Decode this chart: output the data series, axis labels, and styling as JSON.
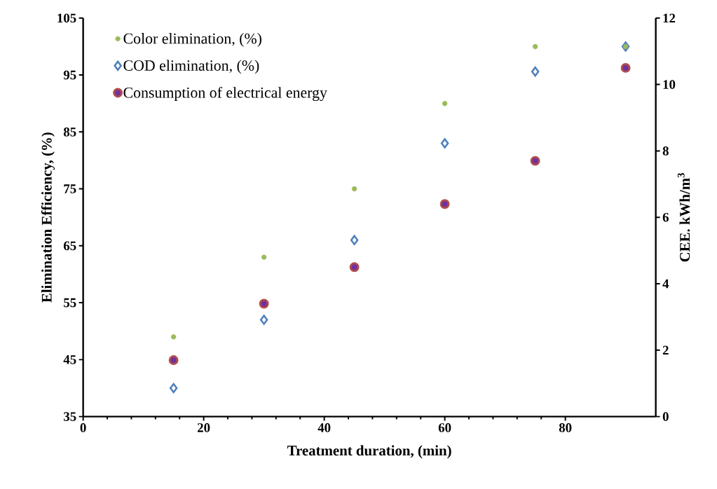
{
  "chart_data": {
    "type": "scatter",
    "xlabel": "Treatment duration, (min)",
    "ylabel": "Elimination Efficiency, (%)",
    "y2label": "CEE. kWh/m$^{3}$",
    "x": [
      15,
      30,
      45,
      60,
      75,
      90
    ],
    "xlim": [
      0,
      95
    ],
    "xticks": [
      0,
      20,
      40,
      60,
      80
    ],
    "ylim": [
      35,
      105
    ],
    "yticks": [
      35,
      45,
      55,
      65,
      75,
      85,
      95,
      105
    ],
    "y2lim": [
      0,
      12
    ],
    "y2ticks": [
      0,
      2,
      4,
      6,
      8,
      10,
      12
    ],
    "grid": false,
    "legend": "top left",
    "series": [
      {
        "name": "Color elimination, (%)",
        "color": "#9bbb59",
        "marker": "circle",
        "values": [
          49,
          63,
          75,
          90,
          100,
          100
        ]
      },
      {
        "name": "COD elimination, (%)",
        "color": "#4f81bd",
        "marker": "diamond",
        "values": [
          40,
          52,
          66,
          83,
          95.6,
          100
        ]
      },
      {
        "name": "Consumption of electrical energy",
        "color": "#7030a0",
        "marker": "circle",
        "axis": "y2",
        "values": [
          1.7,
          3.4,
          4.5,
          6.4,
          7.7,
          10.5
        ]
      }
    ]
  }
}
